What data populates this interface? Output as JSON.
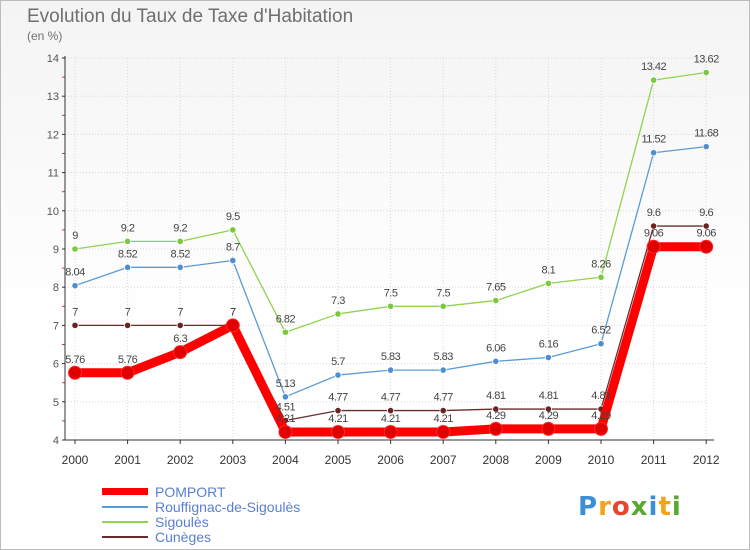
{
  "header": {
    "title": "Evolution du Taux de Taxe d'Habitation",
    "subtitle": "(en %)"
  },
  "chart_data": {
    "type": "line",
    "title": "Evolution du Taux de Taxe d'Habitation",
    "subtitle": "(en %)",
    "xlabel": "",
    "ylabel": "",
    "x": [
      "2000",
      "2001",
      "2002",
      "2003",
      "2004",
      "2005",
      "2006",
      "2007",
      "2008",
      "2009",
      "2010",
      "2011",
      "2012"
    ],
    "ylim": [
      4,
      14
    ],
    "yticks": [
      4,
      5,
      6,
      7,
      8,
      9,
      10,
      11,
      12,
      13,
      14
    ],
    "grid": true,
    "legend_position": "bottom-left",
    "series": [
      {
        "name": "POMPORT",
        "color": "#ff0000",
        "values": [
          5.76,
          5.76,
          6.3,
          7,
          4.21,
          4.21,
          4.21,
          4.21,
          4.29,
          4.29,
          4.29,
          9.06,
          9.06
        ],
        "labels": [
          "5.76",
          "5.76",
          "6.3",
          "7",
          "4.21",
          "4.21",
          "4.21",
          "4.21",
          "4.29",
          "4.29",
          "4.29",
          "9.06",
          "9.06"
        ]
      },
      {
        "name": "Rouffignac-de-Sigoulès",
        "color": "#5b9bd5",
        "values": [
          8.04,
          8.52,
          8.52,
          8.7,
          5.13,
          5.7,
          5.83,
          5.83,
          6.06,
          6.16,
          6.52,
          11.52,
          11.68
        ],
        "labels": [
          "8.04",
          "8.52",
          "8.52",
          "8.7",
          "5.13",
          "5.7",
          "5.83",
          "5.83",
          "6.06",
          "6.16",
          "6.52",
          "11.52",
          "11.68"
        ]
      },
      {
        "name": "Sigoulès",
        "color": "#8ed44c",
        "values": [
          9,
          9.2,
          9.2,
          9.5,
          6.82,
          7.3,
          7.5,
          7.5,
          7.65,
          8.1,
          8.26,
          13.42,
          13.62
        ],
        "labels": [
          "9",
          "9.2",
          "9.2",
          "9.5",
          "6.82",
          "7.3",
          "7.5",
          "7.5",
          "7.65",
          "8.1",
          "8.26",
          "13.42",
          "13.62"
        ]
      },
      {
        "name": "Cunèges",
        "color": "#6b2c2c",
        "values": [
          7,
          7,
          7,
          7,
          4.51,
          4.77,
          4.77,
          4.77,
          4.81,
          4.81,
          4.81,
          9.6,
          9.6
        ],
        "labels": [
          "7",
          "7",
          "7",
          "7",
          "4.51",
          "4.77",
          "4.77",
          "4.77",
          "4.81",
          "4.81",
          "4.81",
          "9.6",
          "9.6"
        ]
      }
    ]
  },
  "logo": {
    "text": "Proxiti",
    "letters": [
      "P",
      "r",
      "o",
      "x",
      "i",
      "t",
      "i"
    ],
    "colors": [
      "#3b8fd6",
      "#f2a31b",
      "#e8452c",
      "#59a832",
      "#3b8fd6",
      "#f2a31b",
      "#59a832"
    ]
  }
}
